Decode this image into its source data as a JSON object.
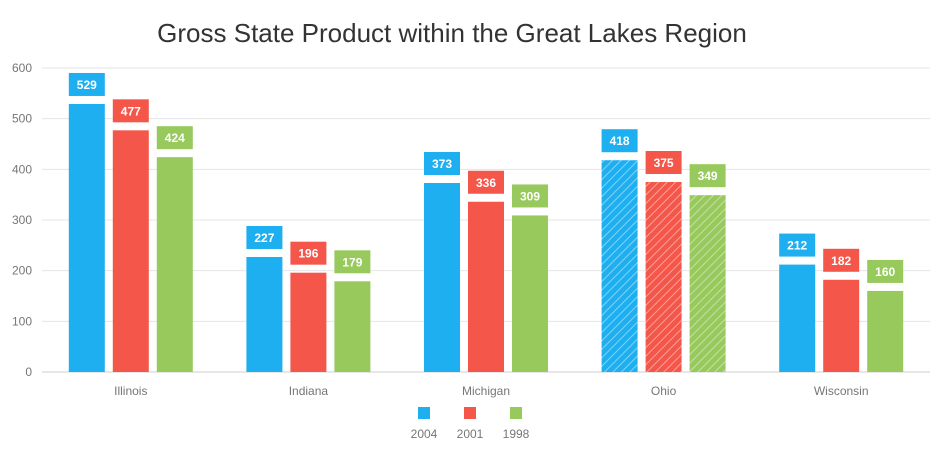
{
  "chart_data": {
    "type": "bar",
    "title": "Gross State Product within the Great Lakes Region",
    "categories": [
      "Illinois",
      "Indiana",
      "Michigan",
      "Ohio",
      "Wisconsin"
    ],
    "series": [
      {
        "name": "2004",
        "color": "#1eaff0",
        "values": [
          529,
          227,
          373,
          418,
          212
        ]
      },
      {
        "name": "2001",
        "color": "#f5564a",
        "values": [
          477,
          196,
          336,
          375,
          182
        ]
      },
      {
        "name": "1998",
        "color": "#97c95c",
        "values": [
          424,
          179,
          309,
          349,
          160
        ]
      }
    ],
    "y_ticks": [
      "0",
      "100",
      "200",
      "300",
      "400",
      "500",
      "600"
    ],
    "ylim": [
      0,
      600
    ],
    "grid": true,
    "legend_position": "bottom-center",
    "highlighted_category": "Ohio",
    "highlight_style": "hatched"
  }
}
